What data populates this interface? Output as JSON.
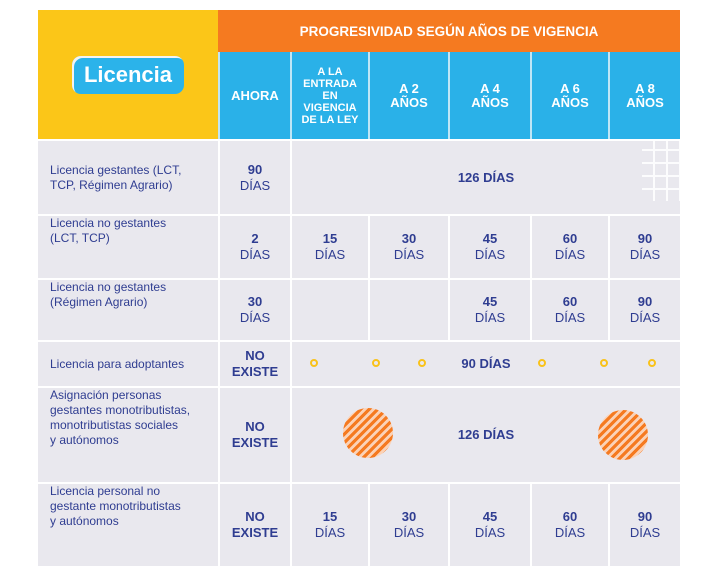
{
  "badge": "Licencia",
  "header": {
    "progresividad": "PROGRESIVIDAD SEGÚN AÑOS DE VIGENCIA",
    "ahora_line1": "AHORA",
    "entrada_l1": "A LA",
    "entrada_l2": "ENTRADA",
    "entrada_l3": "EN",
    "entrada_l4": "VIGENCIA",
    "entrada_l5": "DE LA LEY",
    "a2_l1": "A 2",
    "a2_l2": "AÑOS",
    "a4_l1": "A 4",
    "a4_l2": "AÑOS",
    "a6_l1": "A 6",
    "a6_l2": "AÑOS",
    "a8_l1": "A 8",
    "a8_l2": "AÑOS"
  },
  "rows": [
    {
      "label_l1": "Licencia gestantes (LCT,",
      "label_l2": "TCP, Régimen Agrario)",
      "ahora_num": "90",
      "ahora_unit": "DÍAS",
      "span_num": "126",
      "span_unit": " DÍAS"
    },
    {
      "label_l1": "Licencia no gestantes",
      "label_l2": "(LCT, TCP)",
      "ahora_num": "2",
      "ahora_unit": "DÍAS",
      "c1_num": "15",
      "c1_unit": "DÍAS",
      "c2_num": "30",
      "c2_unit": "DÍAS",
      "c3_num": "45",
      "c3_unit": "DÍAS",
      "c4_num": "60",
      "c4_unit": "DÍAS",
      "c5_num": "90",
      "c5_unit": "DÍAS"
    },
    {
      "label_l1": "Licencia no gestantes",
      "label_l2": "(Régimen Agrario)",
      "ahora_num": "30",
      "ahora_unit": "DÍAS",
      "c3_num": "45",
      "c3_unit": "DÍAS",
      "c4_num": "60",
      "c4_unit": "DÍAS",
      "c5_num": "90",
      "c5_unit": "DÍAS"
    },
    {
      "label_l1": "Licencia para adoptantes",
      "ahora_l1": "NO",
      "ahora_l2": "EXISTE",
      "span_num": "90",
      "span_unit": " DÍAS"
    },
    {
      "label_l1": "Asignación personas",
      "label_l2": "gestantes monotributistas,",
      "label_l3": "monotributistas sociales",
      "label_l4": "y autónomos",
      "ahora_l1": "NO",
      "ahora_l2": "EXISTE",
      "span_num": "126",
      "span_unit": " DÍAS"
    },
    {
      "label_l1": "Licencia personal no",
      "label_l2": "gestante monotributistas",
      "label_l3": "y autónomos",
      "ahora_l1": "NO",
      "ahora_l2": "EXISTE",
      "c1_num": "15",
      "c1_unit": "DÍAS",
      "c2_num": "30",
      "c2_unit": "DÍAS",
      "c3_num": "45",
      "c3_unit": "DÍAS",
      "c4_num": "60",
      "c4_unit": "DÍAS",
      "c5_num": "90",
      "c5_unit": "DÍAS"
    }
  ],
  "colors": {
    "yellow": "#fbc618",
    "orange": "#f57a20",
    "blue": "#2ab1e8",
    "navy_text": "#2f3d91",
    "row_bg": "#e9e8ee"
  }
}
